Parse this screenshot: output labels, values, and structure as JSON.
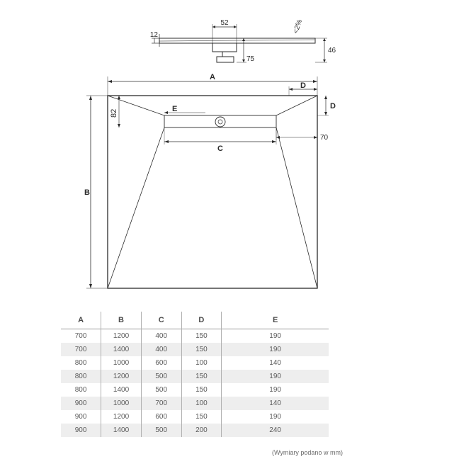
{
  "diagram": {
    "side_view": {
      "top_thickness": "12",
      "drain_width": "52",
      "drain_height": "75",
      "total_height": "46",
      "slope": "<2%",
      "body_color": "#4a4a4a",
      "line_color": "#2b2b2b",
      "hatch_color": "#9a9a9a",
      "font_size": 10
    },
    "top_view": {
      "label_A": "A",
      "label_B": "B",
      "label_C": "C",
      "label_D_h": "D",
      "label_D_v": "D",
      "label_E": "E",
      "dim_82": "82",
      "dim_70": "70",
      "line_color": "#2b2b2b",
      "font_size": 11
    }
  },
  "table": {
    "headers": [
      "A",
      "B",
      "C",
      "D",
      "E"
    ],
    "rows": [
      [
        "700",
        "1200",
        "400",
        "150",
        "190"
      ],
      [
        "700",
        "1400",
        "400",
        "150",
        "190"
      ],
      [
        "800",
        "1000",
        "600",
        "100",
        "140"
      ],
      [
        "800",
        "1200",
        "500",
        "150",
        "190"
      ],
      [
        "800",
        "1400",
        "500",
        "150",
        "190"
      ],
      [
        "900",
        "1000",
        "700",
        "100",
        "140"
      ],
      [
        "900",
        "1200",
        "600",
        "150",
        "190"
      ],
      [
        "900",
        "1400",
        "500",
        "200",
        "240"
      ]
    ],
    "header_bg": "#ffffff",
    "row_alt_bg": "#eeeeee",
    "border_color": "#b0b0b0",
    "text_color": "#5a5a5a"
  },
  "footnote": "(Wymiary podano w mm)"
}
